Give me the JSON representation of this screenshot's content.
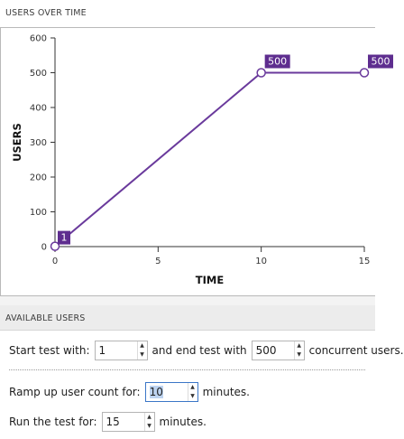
{
  "chart_section": {
    "title": "USERS OVER TIME"
  },
  "chart_data": {
    "type": "line",
    "xlabel": "TIME",
    "ylabel": "USERS",
    "xlim": [
      0,
      15
    ],
    "ylim": [
      0,
      600
    ],
    "xticks": [
      0,
      5,
      10,
      15
    ],
    "yticks": [
      0,
      100,
      200,
      300,
      400,
      500,
      600
    ],
    "points": [
      {
        "x": 0,
        "y": 1,
        "label": "1"
      },
      {
        "x": 10,
        "y": 500,
        "label": "500"
      },
      {
        "x": 15,
        "y": 500,
        "label": "500"
      }
    ],
    "line_color": "#6a3a9c",
    "label_bg": "#5e2d8f"
  },
  "available_users": {
    "title": "AVAILABLE USERS",
    "start_label": "Start test with:",
    "start_value": "1",
    "end_label": "and end test with",
    "end_value": "500",
    "end_suffix": "concurrent users.",
    "ramp_label": "Ramp up user count for:",
    "ramp_value": "10",
    "ramp_suffix": "minutes.",
    "run_label": "Run the test for:",
    "run_value": "15",
    "run_suffix": "minutes."
  }
}
